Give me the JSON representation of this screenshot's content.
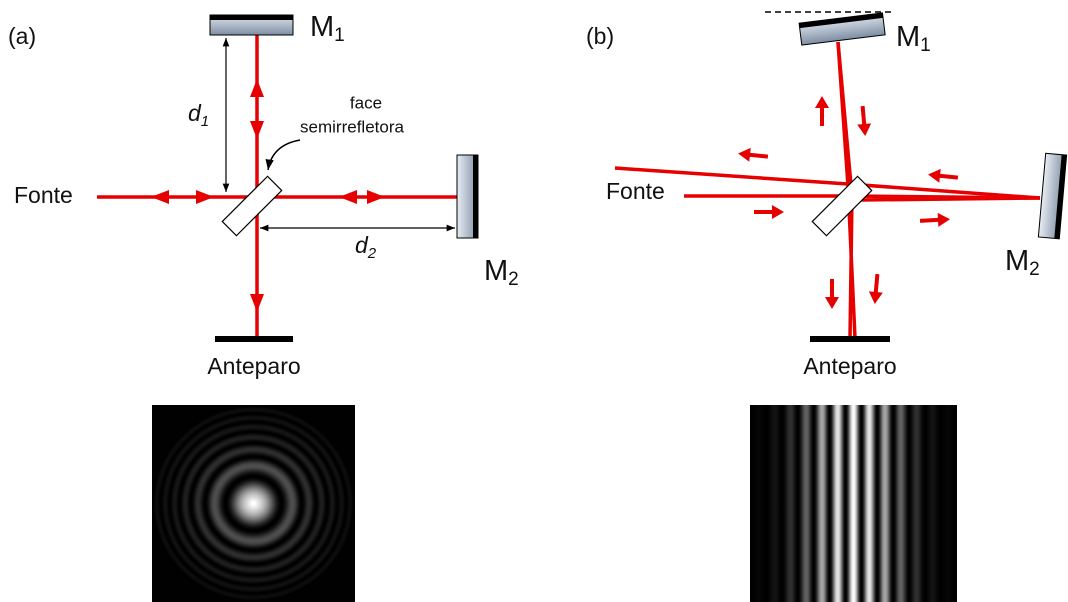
{
  "panels": [
    {
      "label": "(a)",
      "mirror1": {
        "symbol": "M",
        "subscript": "1"
      },
      "mirror2": {
        "symbol": "M",
        "subscript": "2"
      },
      "source": "Fonte",
      "screen": "Anteparo",
      "distance1": {
        "symbol": "d",
        "subscript": "1"
      },
      "distance2": {
        "symbol": "d",
        "subscript": "2"
      },
      "beam_splitter_note": [
        "face",
        "semirrefletora"
      ]
    },
    {
      "label": "(b)",
      "mirror1": {
        "symbol": "M",
        "subscript": "1"
      },
      "mirror2": {
        "symbol": "M",
        "subscript": "2"
      },
      "source": "Fonte",
      "screen": "Anteparo"
    }
  ]
}
